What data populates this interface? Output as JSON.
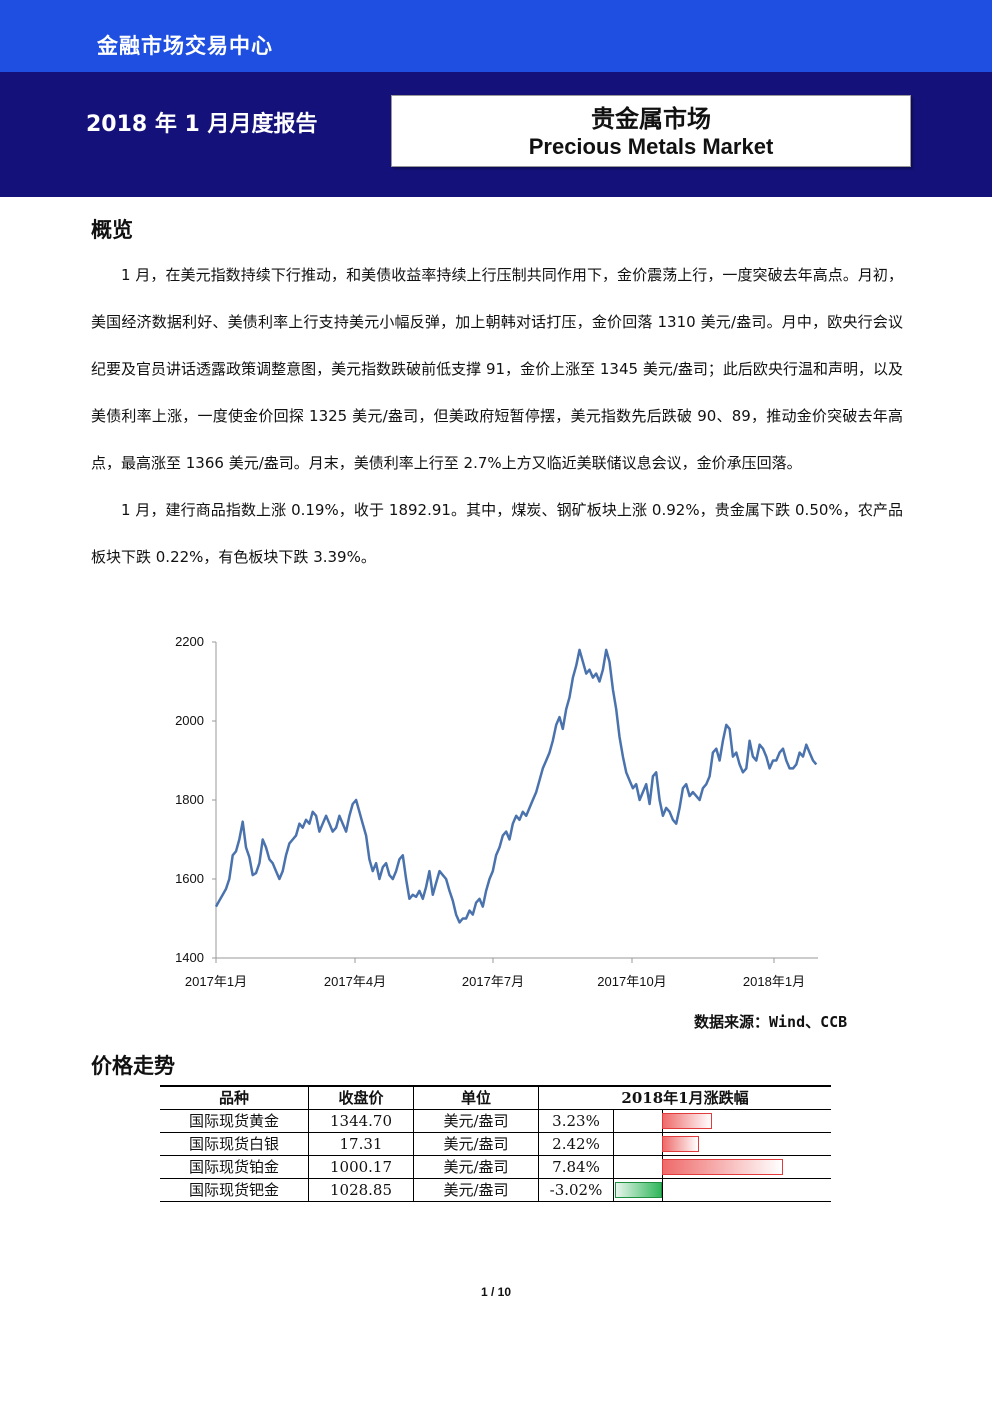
{
  "header": {
    "org": "金融市场交易中心",
    "report_date": "2018 年 1 月月度报告",
    "title_cn": "贵金属市场",
    "title_en": "Precious Metals Market"
  },
  "overview": {
    "heading": "概览",
    "paragraphs": [
      "1 月，在美元指数持续下行推动，和美债收益率持续上行压制共同作用下，金价震荡上行，一度突破去年高点。月初，美国经济数据利好、美债利率上行支持美元小幅反弹，加上朝韩对话打压，金价回落 1310 美元/盎司。月中，欧央行会议纪要及官员讲话透露政策调整意图，美元指数跌破前低支撑 91，金价上涨至 1345 美元/盎司；此后欧央行温和声明，以及美债利率上涨，一度使金价回探 1325 美元/盎司，但美政府短暂停摆，美元指数先后跌破 90、89，推动金价突破去年高点，最高涨至 1366 美元/盎司。月末，美债利率上行至 2.7%上方又临近美联储议息会议，金价承压回落。",
      "1 月，建行商品指数上涨 0.19%，收于 1892.91。其中，煤炭、钢矿板块上涨 0.92%，贵金属下跌 0.50%，农产品板块下跌 0.22%，有色板块下跌 3.39%。"
    ]
  },
  "chart_data": {
    "type": "line",
    "title": "",
    "xlabel": "",
    "ylabel": "",
    "ylim": [
      1400,
      2200
    ],
    "yticks": [
      1400,
      1600,
      1800,
      2000,
      2200
    ],
    "xticks": [
      "2017年1月",
      "2017年4月",
      "2017年7月",
      "2017年10月",
      "2018年1月"
    ],
    "grid": false,
    "series": [
      {
        "name": "",
        "x_index_range": [
          0,
          100
        ],
        "values": [
          [
            0,
            1530
          ],
          [
            0.5,
            1545
          ],
          [
            1,
            1560
          ],
          [
            1.5,
            1575
          ],
          [
            2,
            1600
          ],
          [
            2.5,
            1660
          ],
          [
            3,
            1670
          ],
          [
            3.5,
            1700
          ],
          [
            4,
            1745
          ],
          [
            4.5,
            1680
          ],
          [
            5,
            1655
          ],
          [
            5.5,
            1610
          ],
          [
            6,
            1615
          ],
          [
            6.5,
            1640
          ],
          [
            7,
            1700
          ],
          [
            7.5,
            1680
          ],
          [
            8,
            1650
          ],
          [
            8.5,
            1640
          ],
          [
            9,
            1620
          ],
          [
            9.5,
            1600
          ],
          [
            10,
            1620
          ],
          [
            10.5,
            1660
          ],
          [
            11,
            1690
          ],
          [
            11.5,
            1700
          ],
          [
            12,
            1710
          ],
          [
            12.5,
            1740
          ],
          [
            13,
            1730
          ],
          [
            13.5,
            1750
          ],
          [
            14,
            1740
          ],
          [
            14.5,
            1770
          ],
          [
            15,
            1760
          ],
          [
            15.5,
            1720
          ],
          [
            16,
            1740
          ],
          [
            16.5,
            1760
          ],
          [
            17,
            1740
          ],
          [
            17.5,
            1720
          ],
          [
            18,
            1730
          ],
          [
            18.5,
            1760
          ],
          [
            19,
            1740
          ],
          [
            19.5,
            1720
          ],
          [
            20,
            1760
          ],
          [
            20.5,
            1790
          ],
          [
            21,
            1800
          ],
          [
            21.5,
            1770
          ],
          [
            22,
            1740
          ],
          [
            22.5,
            1710
          ],
          [
            23,
            1650
          ],
          [
            23.5,
            1620
          ],
          [
            24,
            1640
          ],
          [
            24.5,
            1600
          ],
          [
            25,
            1630
          ],
          [
            25.5,
            1640
          ],
          [
            26,
            1610
          ],
          [
            26.5,
            1600
          ],
          [
            27,
            1620
          ],
          [
            27.5,
            1650
          ],
          [
            28,
            1660
          ],
          [
            28.5,
            1600
          ],
          [
            29,
            1550
          ],
          [
            29.5,
            1560
          ],
          [
            30,
            1555
          ],
          [
            30.5,
            1570
          ],
          [
            31,
            1550
          ],
          [
            31.5,
            1580
          ],
          [
            32,
            1620
          ],
          [
            32.5,
            1560
          ],
          [
            33,
            1590
          ],
          [
            33.5,
            1620
          ],
          [
            34,
            1610
          ],
          [
            34.5,
            1600
          ],
          [
            35,
            1570
          ],
          [
            35.5,
            1545
          ],
          [
            36,
            1510
          ],
          [
            36.5,
            1490
          ],
          [
            37,
            1500
          ],
          [
            37.5,
            1500
          ],
          [
            38,
            1520
          ],
          [
            38.5,
            1510
          ],
          [
            39,
            1540
          ],
          [
            39.5,
            1550
          ],
          [
            40,
            1530
          ],
          [
            40.5,
            1570
          ],
          [
            41,
            1600
          ],
          [
            41.5,
            1620
          ],
          [
            42,
            1660
          ],
          [
            42.5,
            1680
          ],
          [
            43,
            1710
          ],
          [
            43.5,
            1720
          ],
          [
            44,
            1700
          ],
          [
            44.5,
            1740
          ],
          [
            45,
            1760
          ],
          [
            45.5,
            1750
          ],
          [
            46,
            1770
          ],
          [
            46.5,
            1760
          ],
          [
            47,
            1780
          ],
          [
            47.5,
            1800
          ],
          [
            48,
            1820
          ],
          [
            48.5,
            1850
          ],
          [
            49,
            1880
          ],
          [
            49.5,
            1900
          ],
          [
            50,
            1920
          ],
          [
            50.5,
            1950
          ],
          [
            51,
            1990
          ],
          [
            51.5,
            2010
          ],
          [
            52,
            1980
          ],
          [
            52.5,
            2030
          ],
          [
            53,
            2060
          ],
          [
            53.5,
            2110
          ],
          [
            54,
            2140
          ],
          [
            54.5,
            2180
          ],
          [
            55,
            2150
          ],
          [
            55.5,
            2120
          ],
          [
            56,
            2130
          ],
          [
            56.5,
            2110
          ],
          [
            57,
            2120
          ],
          [
            57.5,
            2100
          ],
          [
            58,
            2130
          ],
          [
            58.5,
            2180
          ],
          [
            59,
            2150
          ],
          [
            59.5,
            2080
          ],
          [
            60,
            2030
          ],
          [
            60.5,
            1960
          ],
          [
            61,
            1910
          ],
          [
            61.5,
            1870
          ],
          [
            62,
            1850
          ],
          [
            62.5,
            1830
          ],
          [
            63,
            1840
          ],
          [
            63.5,
            1800
          ],
          [
            64,
            1820
          ],
          [
            64.5,
            1840
          ],
          [
            65,
            1790
          ],
          [
            65.5,
            1860
          ],
          [
            66,
            1870
          ],
          [
            66.5,
            1800
          ],
          [
            67,
            1760
          ],
          [
            67.5,
            1780
          ],
          [
            68,
            1770
          ],
          [
            68.5,
            1750
          ],
          [
            69,
            1740
          ],
          [
            69.5,
            1780
          ],
          [
            70,
            1830
          ],
          [
            70.5,
            1840
          ],
          [
            71,
            1810
          ],
          [
            71.5,
            1820
          ],
          [
            72,
            1810
          ],
          [
            72.5,
            1800
          ],
          [
            73,
            1830
          ],
          [
            73.5,
            1840
          ],
          [
            74,
            1860
          ],
          [
            74.5,
            1920
          ],
          [
            75,
            1930
          ],
          [
            75.5,
            1900
          ],
          [
            76,
            1950
          ],
          [
            76.5,
            1990
          ],
          [
            77,
            1980
          ],
          [
            77.5,
            1910
          ],
          [
            78,
            1920
          ],
          [
            78.5,
            1890
          ],
          [
            79,
            1870
          ],
          [
            79.5,
            1880
          ],
          [
            80,
            1950
          ],
          [
            80.5,
            1910
          ],
          [
            81,
            1900
          ],
          [
            81.5,
            1940
          ],
          [
            82,
            1930
          ],
          [
            82.5,
            1910
          ],
          [
            83,
            1880
          ],
          [
            83.5,
            1900
          ],
          [
            84,
            1900
          ],
          [
            84.5,
            1920
          ],
          [
            85,
            1930
          ],
          [
            85.5,
            1900
          ],
          [
            86,
            1880
          ],
          [
            86.5,
            1880
          ],
          [
            87,
            1890
          ],
          [
            87.5,
            1920
          ],
          [
            88,
            1910
          ],
          [
            88.5,
            1940
          ],
          [
            89,
            1920
          ],
          [
            89.5,
            1900
          ],
          [
            90,
            1890
          ]
        ]
      }
    ]
  },
  "source": "数据来源：Wind、CCB",
  "prices": {
    "heading": "价格走势",
    "headers": [
      "品种",
      "收盘价",
      "单位",
      "2018年1月涨跌幅"
    ],
    "rows": [
      {
        "name": "国际现货黄金",
        "close": "1344.70",
        "unit": "美元/盎司",
        "pct": "3.23%",
        "value": 3.23
      },
      {
        "name": "国际现货白银",
        "close": "17.31",
        "unit": "美元/盎司",
        "pct": "2.42%",
        "value": 2.42
      },
      {
        "name": "国际现货铂金",
        "close": "1000.17",
        "unit": "美元/盎司",
        "pct": "7.84%",
        "value": 7.84
      },
      {
        "name": "国际现货钯金",
        "close": "1028.85",
        "unit": "美元/盎司",
        "pct": "-3.02%",
        "value": -3.02
      }
    ]
  },
  "colors": {
    "header_blue": "#1e4fe0",
    "banner_navy": "#14127a",
    "line": "#4a72ad",
    "up": "#e23b3b",
    "down": "#1e8f3e"
  },
  "page": "1 / 10"
}
